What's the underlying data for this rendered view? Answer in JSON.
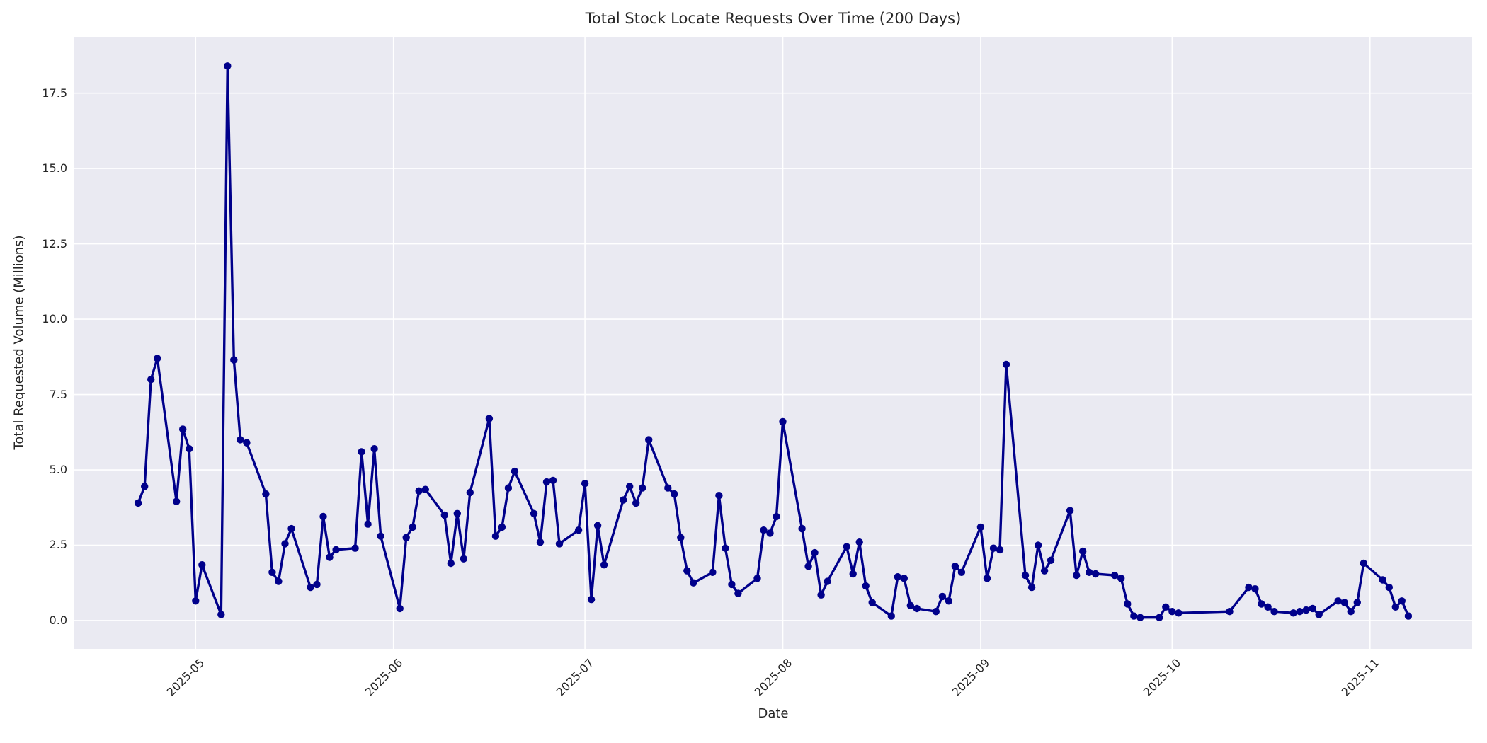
{
  "figure": {
    "title": "Total Stock Locate Requests Over Time (200 Days)",
    "xlabel": "Date",
    "ylabel": "Total Requested Volume (Millions)"
  },
  "colors": {
    "figure_background": "#ffffff",
    "plot_background": "#eaeaf2",
    "gridline": "#ffffff",
    "line": "#00008b",
    "marker": "#00008b",
    "text": "#262626"
  },
  "chart_data": {
    "type": "line",
    "title": "Total Stock Locate Requests Over Time (200 Days)",
    "xlabel": "Date",
    "ylabel": "Total Requested Volume (Millions)",
    "grid": true,
    "legend": false,
    "marker": "o",
    "x_tick_labels": [
      "2025-05",
      "2025-06",
      "2025-07",
      "2025-08",
      "2025-09",
      "2025-10",
      "2025-11"
    ],
    "x_tick_dates": [
      "2025-05-01",
      "2025-06-01",
      "2025-07-01",
      "2025-08-01",
      "2025-09-01",
      "2025-10-01",
      "2025-11-01"
    ],
    "y_tick_labels": [
      "0.0",
      "2.5",
      "5.0",
      "7.5",
      "10.0",
      "12.5",
      "15.0",
      "17.5"
    ],
    "y_ticks": [
      0.0,
      2.5,
      5.0,
      7.5,
      10.0,
      12.5,
      15.0,
      17.5
    ],
    "xlim": [
      "2025-04-12",
      "2025-11-17"
    ],
    "ylim": [
      -0.94,
      19.37
    ],
    "series": [
      {
        "name": "Total Requested Volume",
        "dates": [
          "2025-04-22",
          "2025-04-23",
          "2025-04-24",
          "2025-04-25",
          "2025-04-28",
          "2025-04-29",
          "2025-04-30",
          "2025-05-01",
          "2025-05-02",
          "2025-05-05",
          "2025-05-06",
          "2025-05-07",
          "2025-05-08",
          "2025-05-09",
          "2025-05-12",
          "2025-05-13",
          "2025-05-14",
          "2025-05-15",
          "2025-05-16",
          "2025-05-19",
          "2025-05-20",
          "2025-05-21",
          "2025-05-22",
          "2025-05-23",
          "2025-05-26",
          "2025-05-27",
          "2025-05-28",
          "2025-05-29",
          "2025-05-30",
          "2025-06-02",
          "2025-06-03",
          "2025-06-04",
          "2025-06-05",
          "2025-06-06",
          "2025-06-09",
          "2025-06-10",
          "2025-06-11",
          "2025-06-12",
          "2025-06-13",
          "2025-06-16",
          "2025-06-17",
          "2025-06-18",
          "2025-06-19",
          "2025-06-20",
          "2025-06-23",
          "2025-06-24",
          "2025-06-25",
          "2025-06-26",
          "2025-06-27",
          "2025-06-30",
          "2025-07-01",
          "2025-07-02",
          "2025-07-03",
          "2025-07-04",
          "2025-07-07",
          "2025-07-08",
          "2025-07-09",
          "2025-07-10",
          "2025-07-11",
          "2025-07-14",
          "2025-07-15",
          "2025-07-16",
          "2025-07-17",
          "2025-07-18",
          "2025-07-21",
          "2025-07-22",
          "2025-07-23",
          "2025-07-24",
          "2025-07-25",
          "2025-07-28",
          "2025-07-29",
          "2025-07-30",
          "2025-07-31",
          "2025-08-01",
          "2025-08-04",
          "2025-08-05",
          "2025-08-06",
          "2025-08-07",
          "2025-08-08",
          "2025-08-11",
          "2025-08-12",
          "2025-08-13",
          "2025-08-14",
          "2025-08-15",
          "2025-08-18",
          "2025-08-19",
          "2025-08-20",
          "2025-08-21",
          "2025-08-22",
          "2025-08-25",
          "2025-08-26",
          "2025-08-27",
          "2025-08-28",
          "2025-08-29",
          "2025-09-01",
          "2025-09-02",
          "2025-09-03",
          "2025-09-04",
          "2025-09-05",
          "2025-09-08",
          "2025-09-09",
          "2025-09-10",
          "2025-09-11",
          "2025-09-12",
          "2025-09-15",
          "2025-09-16",
          "2025-09-17",
          "2025-09-18",
          "2025-09-19",
          "2025-09-22",
          "2025-09-23",
          "2025-09-24",
          "2025-09-25",
          "2025-09-26",
          "2025-09-29",
          "2025-09-30",
          "2025-10-01",
          "2025-10-02",
          "2025-10-10",
          "2025-10-13",
          "2025-10-14",
          "2025-10-15",
          "2025-10-16",
          "2025-10-17",
          "2025-10-20",
          "2025-10-21",
          "2025-10-22",
          "2025-10-23",
          "2025-10-24",
          "2025-10-27",
          "2025-10-28",
          "2025-10-29",
          "2025-10-30",
          "2025-10-31",
          "2025-11-03",
          "2025-11-04",
          "2025-11-05",
          "2025-11-06",
          "2025-11-07"
        ],
        "values": [
          3.9,
          4.45,
          8.0,
          8.7,
          3.95,
          6.35,
          5.7,
          0.65,
          1.85,
          0.2,
          18.4,
          8.65,
          6.0,
          5.9,
          4.2,
          1.6,
          1.3,
          2.55,
          3.05,
          1.1,
          1.2,
          3.45,
          2.1,
          2.35,
          2.4,
          5.6,
          3.2,
          5.7,
          2.8,
          0.4,
          2.75,
          3.1,
          4.3,
          4.35,
          3.5,
          1.9,
          3.55,
          2.05,
          4.25,
          6.7,
          2.8,
          3.1,
          4.4,
          4.95,
          3.55,
          2.6,
          4.6,
          4.65,
          2.55,
          3.0,
          4.55,
          0.7,
          3.15,
          1.85,
          4.0,
          4.45,
          3.9,
          4.4,
          6.0,
          4.4,
          4.2,
          2.75,
          1.65,
          1.25,
          1.6,
          4.15,
          2.4,
          1.2,
          0.9,
          1.4,
          3.0,
          2.9,
          3.45,
          6.6,
          3.05,
          1.8,
          2.25,
          0.85,
          1.3,
          2.45,
          1.55,
          2.6,
          1.15,
          0.6,
          0.15,
          1.45,
          1.4,
          0.5,
          0.4,
          0.3,
          0.8,
          0.65,
          1.8,
          1.6,
          3.1,
          1.4,
          2.4,
          2.35,
          8.5,
          1.5,
          1.1,
          2.5,
          1.65,
          2.0,
          3.65,
          1.5,
          2.3,
          1.6,
          1.55,
          1.5,
          1.4,
          0.55,
          0.15,
          0.1,
          0.1,
          0.45,
          0.3,
          0.25,
          0.3,
          1.1,
          1.05,
          0.55,
          0.45,
          0.3,
          0.25,
          0.3,
          0.35,
          0.4,
          0.2,
          0.65,
          0.6,
          0.3,
          0.6,
          1.9,
          1.35,
          1.1,
          0.45,
          0.65,
          0.15
        ]
      }
    ]
  }
}
